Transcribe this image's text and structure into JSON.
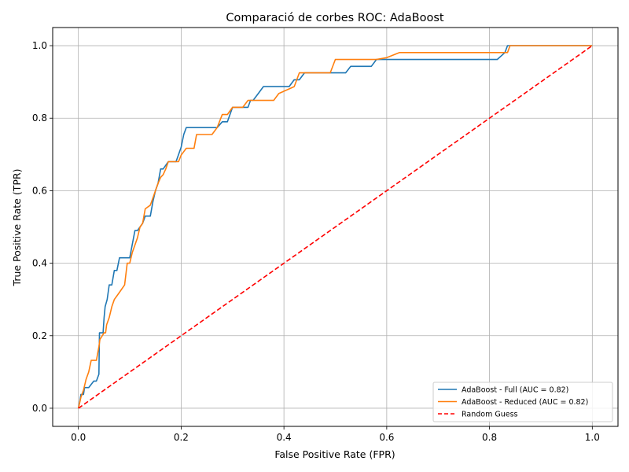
{
  "chart_data": {
    "type": "line",
    "title": "Comparació de corbes ROC: AdaBoost",
    "xlabel": "False Positive Rate (FPR)",
    "ylabel": "True Positive Rate (TPR)",
    "xlim": [
      -0.05,
      1.05
    ],
    "ylim": [
      -0.05,
      1.05
    ],
    "xticks": [
      0.0,
      0.2,
      0.4,
      0.6,
      0.8,
      1.0
    ],
    "yticks": [
      0.0,
      0.2,
      0.4,
      0.6,
      0.8,
      1.0
    ],
    "tick_labels": [
      "0.0",
      "0.2",
      "0.4",
      "0.6",
      "0.8",
      "1.0"
    ],
    "grid": true,
    "legend_position": "lower-right",
    "series": [
      {
        "name": "AdaBoost - Full (AUC = 0.82)",
        "color": "#1f77b4",
        "style": "solid",
        "x": [
          0.0,
          0.003,
          0.005,
          0.01,
          0.012,
          0.02,
          0.03,
          0.035,
          0.04,
          0.041,
          0.043,
          0.048,
          0.05,
          0.052,
          0.054,
          0.056,
          0.06,
          0.065,
          0.07,
          0.075,
          0.08,
          0.085,
          0.1,
          0.11,
          0.115,
          0.125,
          0.13,
          0.14,
          0.145,
          0.15,
          0.155,
          0.16,
          0.165,
          0.175,
          0.18,
          0.19,
          0.2,
          0.205,
          0.21,
          0.22,
          0.27,
          0.28,
          0.29,
          0.3,
          0.33,
          0.335,
          0.34,
          0.35,
          0.36,
          0.39,
          0.41,
          0.42,
          0.43,
          0.44,
          0.52,
          0.53,
          0.57,
          0.58,
          0.6,
          0.8,
          0.815,
          0.83,
          0.835,
          0.84,
          1.0
        ],
        "y": [
          0.0,
          0.02,
          0.038,
          0.038,
          0.057,
          0.057,
          0.075,
          0.075,
          0.094,
          0.208,
          0.208,
          0.208,
          0.25,
          0.28,
          0.29,
          0.3,
          0.34,
          0.34,
          0.38,
          0.38,
          0.415,
          0.415,
          0.415,
          0.49,
          0.49,
          0.51,
          0.53,
          0.53,
          0.57,
          0.6,
          0.62,
          0.66,
          0.66,
          0.68,
          0.68,
          0.68,
          0.72,
          0.755,
          0.774,
          0.774,
          0.774,
          0.79,
          0.79,
          0.83,
          0.83,
          0.849,
          0.849,
          0.868,
          0.887,
          0.887,
          0.887,
          0.906,
          0.906,
          0.925,
          0.925,
          0.943,
          0.943,
          0.962,
          0.962,
          0.962,
          0.962,
          0.981,
          1.0,
          1.0,
          1.0
        ]
      },
      {
        "name": "AdaBoost - Reduced (AUC = 0.82)",
        "color": "#ff7f0e",
        "style": "solid",
        "x": [
          0.0,
          0.005,
          0.01,
          0.015,
          0.02,
          0.025,
          0.035,
          0.04,
          0.042,
          0.05,
          0.053,
          0.055,
          0.06,
          0.065,
          0.07,
          0.075,
          0.08,
          0.09,
          0.095,
          0.1,
          0.105,
          0.11,
          0.115,
          0.12,
          0.125,
          0.13,
          0.14,
          0.145,
          0.15,
          0.155,
          0.16,
          0.165,
          0.17,
          0.175,
          0.18,
          0.195,
          0.2,
          0.21,
          0.225,
          0.23,
          0.24,
          0.26,
          0.27,
          0.28,
          0.29,
          0.3,
          0.32,
          0.33,
          0.38,
          0.39,
          0.42,
          0.43,
          0.49,
          0.5,
          0.58,
          0.6,
          0.625,
          0.8,
          0.835,
          0.84,
          1.0
        ],
        "y": [
          0.0,
          0.03,
          0.05,
          0.08,
          0.1,
          0.132,
          0.132,
          0.17,
          0.19,
          0.208,
          0.208,
          0.23,
          0.25,
          0.28,
          0.3,
          0.31,
          0.32,
          0.34,
          0.4,
          0.4,
          0.43,
          0.45,
          0.47,
          0.5,
          0.51,
          0.55,
          0.56,
          0.58,
          0.6,
          0.62,
          0.637,
          0.644,
          0.66,
          0.68,
          0.68,
          0.68,
          0.698,
          0.717,
          0.717,
          0.755,
          0.755,
          0.755,
          0.774,
          0.81,
          0.81,
          0.83,
          0.83,
          0.849,
          0.849,
          0.868,
          0.887,
          0.925,
          0.925,
          0.962,
          0.962,
          0.967,
          0.981,
          0.981,
          0.981,
          1.0,
          1.0
        ]
      },
      {
        "name": "Random Guess",
        "color": "#ff0000",
        "style": "dashed",
        "x": [
          0.0,
          1.0
        ],
        "y": [
          0.0,
          1.0
        ]
      }
    ]
  }
}
